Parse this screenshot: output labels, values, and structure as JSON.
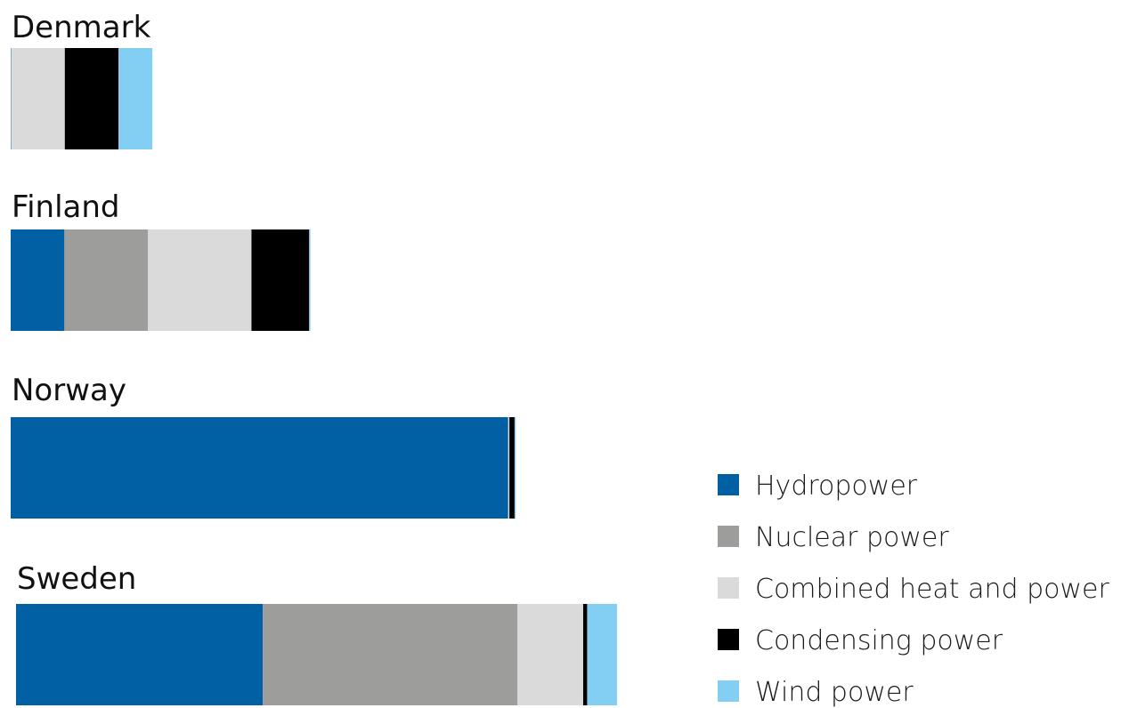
{
  "chart_data": {
    "type": "bar",
    "orientation": "horizontal",
    "stacked": true,
    "categories": [
      "Denmark",
      "Finland",
      "Norway",
      "Sweden"
    ],
    "series": [
      {
        "name": "Hydropower",
        "color": "#0060a3",
        "values": [
          0.1,
          13.5,
          125,
          62
        ]
      },
      {
        "name": "Nuclear power",
        "color": "#9d9d9c",
        "values": [
          0,
          21,
          0,
          64
        ]
      },
      {
        "name": "Combined heat and power",
        "color": "#dadada",
        "values": [
          13.5,
          26,
          0.3,
          16.5
        ]
      },
      {
        "name": "Condensing power",
        "color": "#000000",
        "values": [
          13.5,
          14.5,
          1.3,
          1
        ]
      },
      {
        "name": "Wind power",
        "color": "#82cff3",
        "values": [
          8.5,
          0.3,
          0.3,
          7.5
        ]
      }
    ],
    "legend_position": "bottom-right",
    "grid": false
  }
}
